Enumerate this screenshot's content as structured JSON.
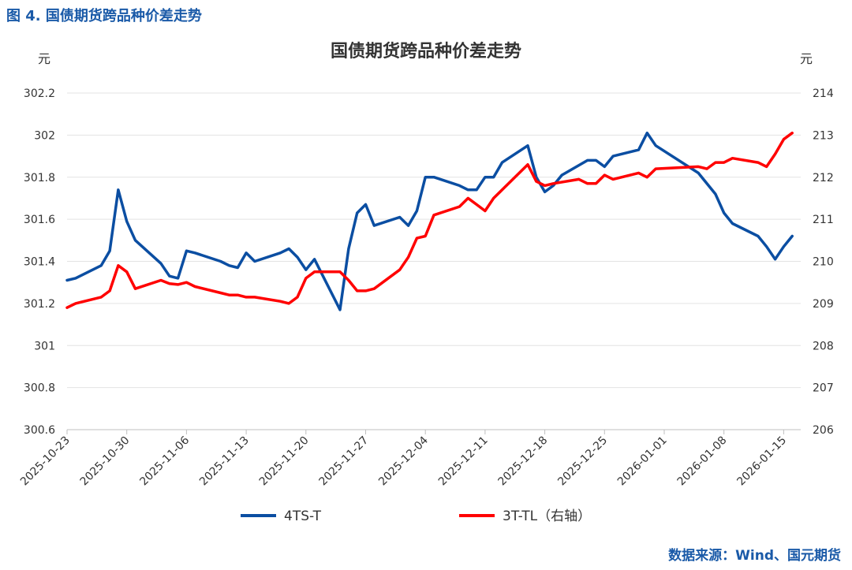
{
  "figure_caption": "图 4. 国债期货跨品种价差走势",
  "source_note": "数据来源：Wind、国元期货",
  "chart_data": {
    "type": "line",
    "title": "国债期货跨品种价差走势",
    "y_left_unit": "元",
    "y_right_unit": "元",
    "y_left_ticks": [
      "300.6",
      "300.8",
      "301",
      "301.2",
      "301.4",
      "301.6",
      "301.8",
      "302",
      "302.2"
    ],
    "y_right_ticks": [
      "206",
      "207",
      "208",
      "209",
      "210",
      "211",
      "212",
      "213",
      "214"
    ],
    "ylim_left": [
      300.6,
      302.2
    ],
    "ylim_right": [
      206,
      214
    ],
    "grid": true,
    "legend_position": "bottom",
    "x_tick_labels": [
      "2025-10-23",
      "2025-10-30",
      "2025-11-06",
      "2025-11-13",
      "2025-11-20",
      "2025-11-27",
      "2025-12-04",
      "2025-12-11",
      "2025-12-18",
      "2025-12-25",
      "2026-01-01",
      "2026-01-08",
      "2026-01-15"
    ],
    "x_range": [
      "2025-10-23",
      "2026-01-17"
    ],
    "series": [
      {
        "name": "4TS-T",
        "axis": "left",
        "color": "#0b4ea2",
        "points": [
          [
            "2025-10-23",
            301.31
          ],
          [
            "2025-10-24",
            301.32
          ],
          [
            "2025-10-27",
            301.38
          ],
          [
            "2025-10-28",
            301.45
          ],
          [
            "2025-10-29",
            301.74
          ],
          [
            "2025-10-30",
            301.59
          ],
          [
            "2025-10-31",
            301.5
          ],
          [
            "2025-11-03",
            301.39
          ],
          [
            "2025-11-04",
            301.33
          ],
          [
            "2025-11-05",
            301.32
          ],
          [
            "2025-11-06",
            301.45
          ],
          [
            "2025-11-07",
            301.44
          ],
          [
            "2025-11-10",
            301.4
          ],
          [
            "2025-11-11",
            301.38
          ],
          [
            "2025-11-12",
            301.37
          ],
          [
            "2025-11-13",
            301.44
          ],
          [
            "2025-11-14",
            301.4
          ],
          [
            "2025-11-17",
            301.44
          ],
          [
            "2025-11-18",
            301.46
          ],
          [
            "2025-11-19",
            301.42
          ],
          [
            "2025-11-20",
            301.36
          ],
          [
            "2025-11-21",
            301.41
          ],
          [
            "2025-11-24",
            301.17
          ],
          [
            "2025-11-25",
            301.46
          ],
          [
            "2025-11-26",
            301.63
          ],
          [
            "2025-11-27",
            301.67
          ],
          [
            "2025-11-28",
            301.57
          ],
          [
            "2025-12-01",
            301.61
          ],
          [
            "2025-12-02",
            301.57
          ],
          [
            "2025-12-03",
            301.64
          ],
          [
            "2025-12-04",
            301.8
          ],
          [
            "2025-12-05",
            301.8
          ],
          [
            "2025-12-08",
            301.76
          ],
          [
            "2025-12-09",
            301.74
          ],
          [
            "2025-12-10",
            301.74
          ],
          [
            "2025-12-11",
            301.8
          ],
          [
            "2025-12-12",
            301.8
          ],
          [
            "2025-12-13",
            301.87
          ],
          [
            "2025-12-16",
            301.95
          ],
          [
            "2025-12-17",
            301.8
          ],
          [
            "2025-12-18",
            301.73
          ],
          [
            "2025-12-19",
            301.76
          ],
          [
            "2025-12-20",
            301.81
          ],
          [
            "2025-12-23",
            301.88
          ],
          [
            "2025-12-24",
            301.88
          ],
          [
            "2025-12-25",
            301.85
          ],
          [
            "2025-12-26",
            301.9
          ],
          [
            "2025-12-29",
            301.93
          ],
          [
            "2025-12-30",
            302.01
          ],
          [
            "2025-12-31",
            301.95
          ],
          [
            "2026-01-05",
            301.82
          ],
          [
            "2026-01-07",
            301.72
          ],
          [
            "2026-01-08",
            301.63
          ],
          [
            "2026-01-09",
            301.58
          ],
          [
            "2026-01-12",
            301.52
          ],
          [
            "2026-01-13",
            301.47
          ],
          [
            "2026-01-14",
            301.41
          ],
          [
            "2026-01-15",
            301.47
          ],
          [
            "2026-01-16",
            301.52
          ]
        ]
      },
      {
        "name": "3T-TL（右轴）",
        "axis": "right",
        "color": "#ff0000",
        "points": [
          [
            "2025-10-23",
            208.9
          ],
          [
            "2025-10-24",
            209.0
          ],
          [
            "2025-10-27",
            209.15
          ],
          [
            "2025-10-28",
            209.3
          ],
          [
            "2025-10-29",
            209.9
          ],
          [
            "2025-10-30",
            209.75
          ],
          [
            "2025-10-31",
            209.35
          ],
          [
            "2025-11-03",
            209.55
          ],
          [
            "2025-11-04",
            209.47
          ],
          [
            "2025-11-05",
            209.45
          ],
          [
            "2025-11-06",
            209.5
          ],
          [
            "2025-11-07",
            209.4
          ],
          [
            "2025-11-10",
            209.25
          ],
          [
            "2025-11-11",
            209.2
          ],
          [
            "2025-11-12",
            209.2
          ],
          [
            "2025-11-13",
            209.15
          ],
          [
            "2025-11-14",
            209.15
          ],
          [
            "2025-11-17",
            209.05
          ],
          [
            "2025-11-18",
            209.0
          ],
          [
            "2025-11-19",
            209.15
          ],
          [
            "2025-11-20",
            209.6
          ],
          [
            "2025-11-21",
            209.75
          ],
          [
            "2025-11-24",
            209.75
          ],
          [
            "2025-11-25",
            209.55
          ],
          [
            "2025-11-26",
            209.3
          ],
          [
            "2025-11-27",
            209.3
          ],
          [
            "2025-11-28",
            209.35
          ],
          [
            "2025-12-01",
            209.8
          ],
          [
            "2025-12-02",
            210.1
          ],
          [
            "2025-12-03",
            210.55
          ],
          [
            "2025-12-04",
            210.6
          ],
          [
            "2025-12-05",
            211.1
          ],
          [
            "2025-12-08",
            211.3
          ],
          [
            "2025-12-09",
            211.5
          ],
          [
            "2025-12-10",
            211.35
          ],
          [
            "2025-12-11",
            211.2
          ],
          [
            "2025-12-12",
            211.5
          ],
          [
            "2025-12-13",
            211.7
          ],
          [
            "2025-12-16",
            212.3
          ],
          [
            "2025-12-17",
            211.9
          ],
          [
            "2025-12-18",
            211.8
          ],
          [
            "2025-12-19",
            211.85
          ],
          [
            "2025-12-22",
            211.95
          ],
          [
            "2025-12-23",
            211.85
          ],
          [
            "2025-12-24",
            211.85
          ],
          [
            "2025-12-25",
            212.05
          ],
          [
            "2025-12-26",
            211.95
          ],
          [
            "2025-12-29",
            212.1
          ],
          [
            "2025-12-30",
            212.0
          ],
          [
            "2025-12-31",
            212.2
          ],
          [
            "2026-01-05",
            212.25
          ],
          [
            "2026-01-06",
            212.2
          ],
          [
            "2026-01-07",
            212.35
          ],
          [
            "2026-01-08",
            212.35
          ],
          [
            "2026-01-09",
            212.45
          ],
          [
            "2026-01-12",
            212.35
          ],
          [
            "2026-01-13",
            212.25
          ],
          [
            "2026-01-14",
            212.55
          ],
          [
            "2026-01-15",
            212.9
          ],
          [
            "2026-01-16",
            213.05
          ]
        ]
      }
    ]
  }
}
